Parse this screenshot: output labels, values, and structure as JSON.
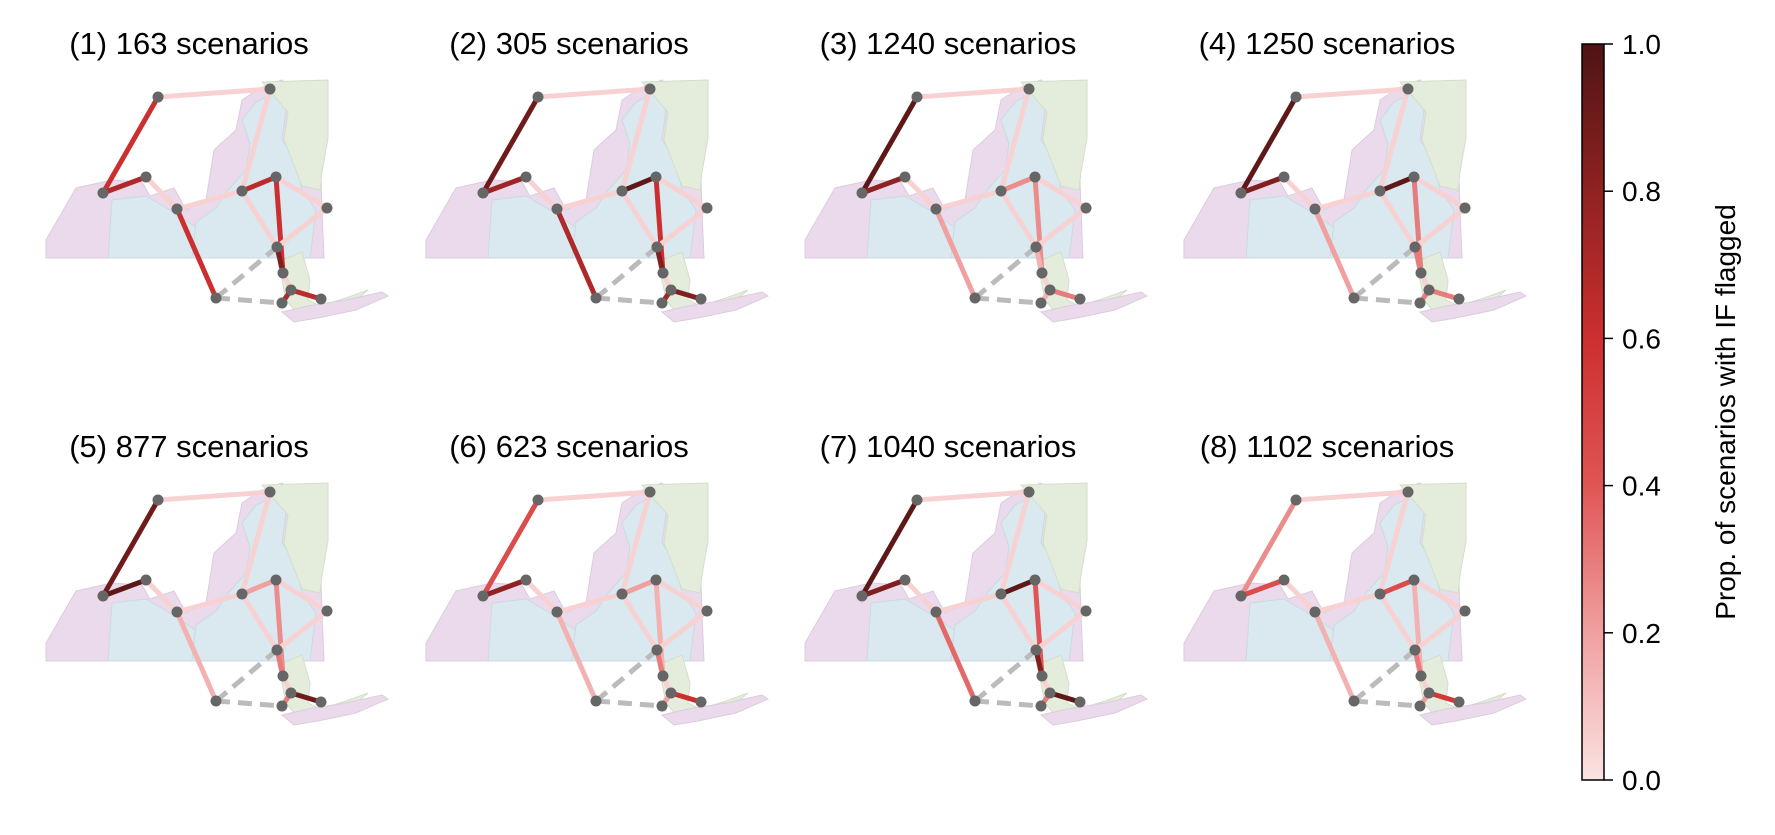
{
  "chart_data": {
    "type": "network-map",
    "colorbar": {
      "label": "Prop. of scenarios with IF flagged",
      "min": 0.0,
      "max": 1.0,
      "ticks": [
        "0.0",
        "0.2",
        "0.4",
        "0.6",
        "0.8",
        "1.0"
      ],
      "colors": [
        "#fbe2e2",
        "#f0a0a0",
        "#e05555",
        "#cc2f2f",
        "#8f2222",
        "#4e1414"
      ]
    },
    "colors": {
      "node": "#666666",
      "dashed_link": "#bbbbbb",
      "region_purple": "#e8d6ea",
      "region_blue": "#d6e6ee",
      "region_green": "#e2ecd8"
    },
    "lines": [
      "AB",
      "BC",
      "CD",
      "DE",
      "EF",
      "EG",
      "GH",
      "GI",
      "IL",
      "LM",
      "LN",
      "IJ",
      "DK",
      "IK",
      "KN",
      "KO"
    ],
    "dashed_lines": [
      "KJ",
      "JO"
    ],
    "panels": [
      {
        "title": "(1) 163 scenarios",
        "values": {
          "AB": 0.05,
          "BC": 0.6,
          "CD": 0.7,
          "DE": 0.05,
          "EF": 0.05,
          "EG": 0.6,
          "GH": 0.05,
          "GI": 0.05,
          "IL": 0.6,
          "LM": 0.05,
          "LN": 0.7,
          "IJ": 0.05,
          "DK": 0.65,
          "IK": 0.05,
          "KN": 0.85,
          "KO": 0.65
        }
      },
      {
        "title": "(2) 305 scenarios",
        "values": {
          "AB": 0.05,
          "BC": 0.9,
          "CD": 0.75,
          "DE": 0.05,
          "EF": 0.05,
          "EG": 0.7,
          "GH": 0.05,
          "GI": 0.05,
          "IL": 0.6,
          "LM": 0.05,
          "LN": 0.75,
          "IJ": 0.05,
          "DK": 0.95,
          "IK": 0.05,
          "KN": 0.85,
          "KO": 0.85
        }
      },
      {
        "title": "(3) 1240 scenarios",
        "values": {
          "AB": 0.05,
          "BC": 0.95,
          "CD": 0.8,
          "DE": 0.05,
          "EF": 0.05,
          "EG": 0.2,
          "GH": 0.05,
          "GI": 0.05,
          "IL": 0.25,
          "LM": 0.05,
          "LN": 0.15,
          "IJ": 0.05,
          "DK": 0.25,
          "IK": 0.05,
          "KN": 0.15,
          "KO": 0.3
        }
      },
      {
        "title": "(4) 1250 scenarios",
        "values": {
          "AB": 0.05,
          "BC": 0.95,
          "CD": 0.85,
          "DE": 0.05,
          "EF": 0.05,
          "EG": 0.2,
          "GH": 0.05,
          "GI": 0.05,
          "IL": 0.3,
          "LM": 0.05,
          "LN": 0.3,
          "IJ": 0.05,
          "DK": 0.95,
          "IK": 0.05,
          "KN": 0.3,
          "KO": 0.3
        }
      },
      {
        "title": "(5) 877 scenarios",
        "values": {
          "AB": 0.05,
          "BC": 0.9,
          "CD": 0.95,
          "DE": 0.05,
          "EF": 0.05,
          "EG": 0.15,
          "GH": 0.05,
          "GI": 0.05,
          "IL": 0.25,
          "LM": 0.05,
          "LN": 0.3,
          "IJ": 0.05,
          "DK": 0.2,
          "IK": 0.05,
          "KN": 0.3,
          "KO": 0.9
        }
      },
      {
        "title": "(6) 623 scenarios",
        "values": {
          "AB": 0.05,
          "BC": 0.45,
          "CD": 0.8,
          "DE": 0.05,
          "EF": 0.05,
          "EG": 0.15,
          "GH": 0.05,
          "GI": 0.05,
          "IL": 0.15,
          "LM": 0.05,
          "LN": 0.2,
          "IJ": 0.05,
          "DK": 0.2,
          "IK": 0.05,
          "KN": 0.3,
          "KO": 0.6
        }
      },
      {
        "title": "(7) 1040 scenarios",
        "values": {
          "AB": 0.05,
          "BC": 0.95,
          "CD": 0.85,
          "DE": 0.05,
          "EF": 0.05,
          "EG": 0.35,
          "GH": 0.05,
          "GI": 0.05,
          "IL": 0.4,
          "LM": 0.05,
          "LN": 0.3,
          "IJ": 0.05,
          "DK": 0.95,
          "IK": 0.05,
          "KN": 0.85,
          "KO": 0.95
        }
      },
      {
        "title": "(8) 1102 scenarios",
        "values": {
          "AB": 0.05,
          "BC": 0.25,
          "CD": 0.45,
          "DE": 0.05,
          "EF": 0.05,
          "EG": 0.15,
          "GH": 0.05,
          "GI": 0.05,
          "IL": 0.15,
          "LM": 0.05,
          "LN": 0.2,
          "IJ": 0.05,
          "DK": 0.45,
          "IK": 0.05,
          "KN": 0.3,
          "KO": 0.55
        }
      }
    ]
  }
}
